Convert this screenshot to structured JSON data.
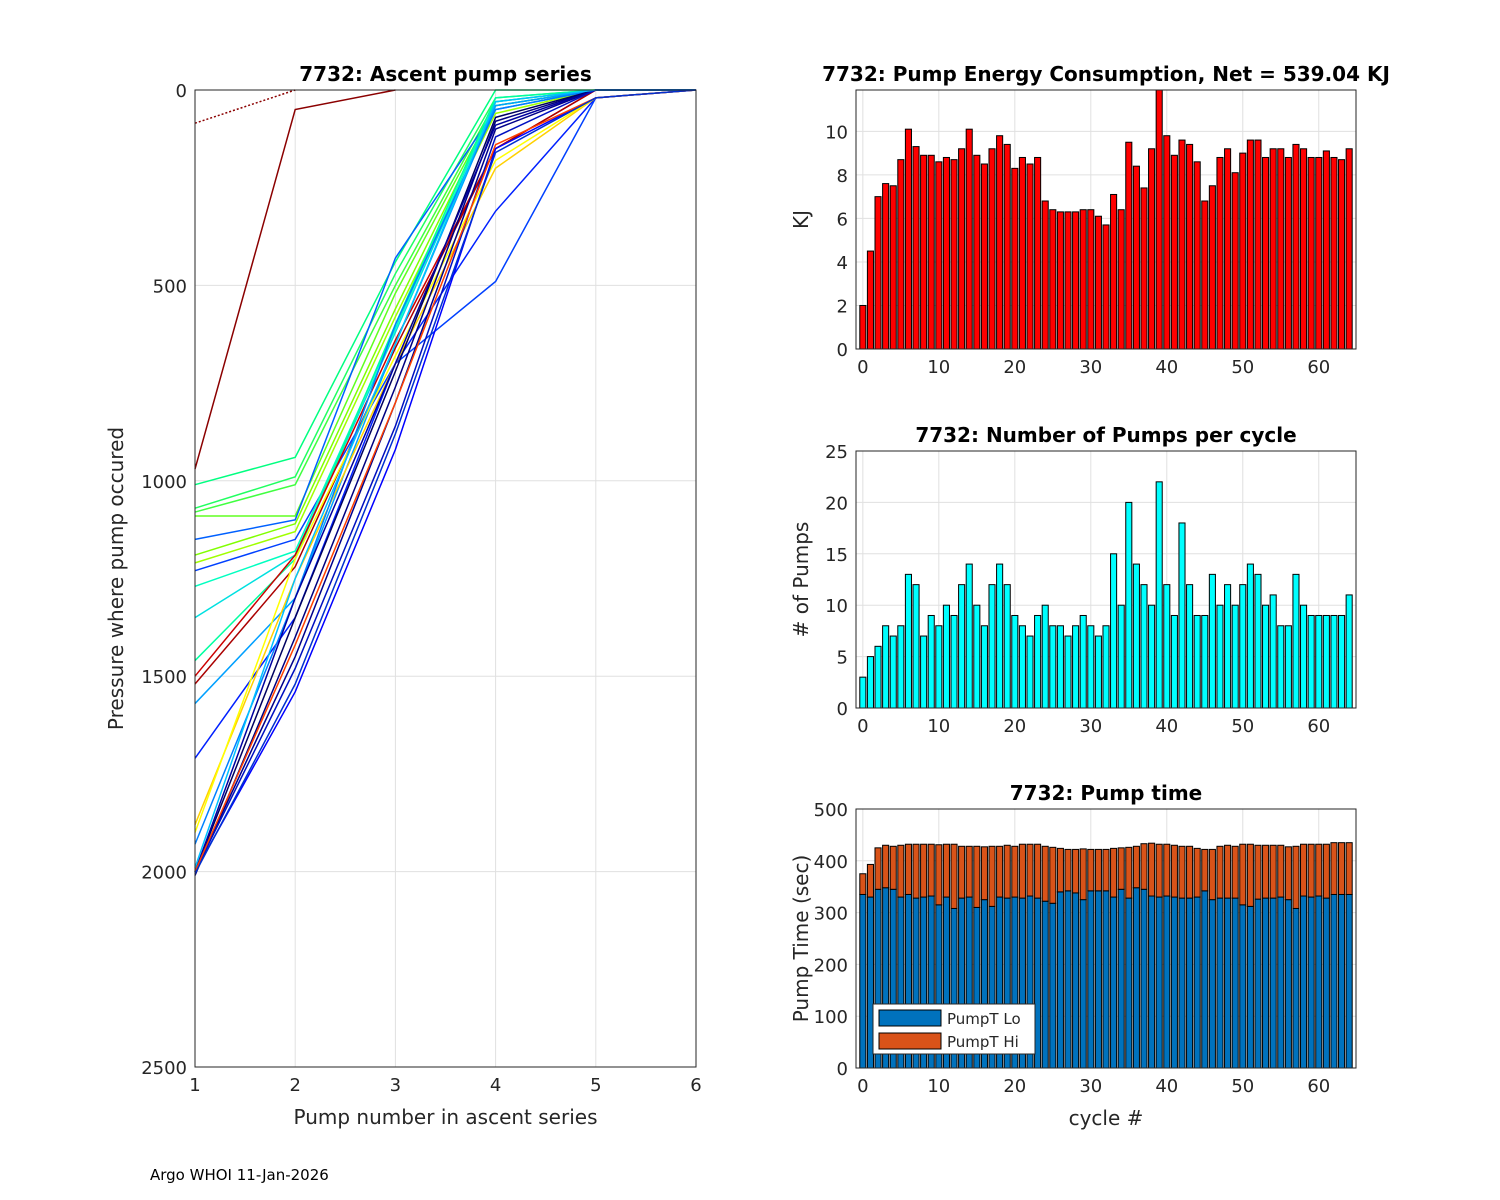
{
  "footer": "Argo WHOI 11-Jan-2026",
  "chart_data": [
    {
      "type": "line",
      "title": "7732: Ascent pump series",
      "xlabel": "Pump number in ascent series",
      "ylabel": "Pressure where pump occured",
      "xlim": [
        1,
        6
      ],
      "ylim": [
        0,
        2500
      ],
      "y_reversed": true,
      "xticks": [
        1,
        2,
        3,
        4,
        5,
        6
      ],
      "yticks": [
        0,
        500,
        1000,
        1500,
        2000,
        2500
      ],
      "grid": true,
      "series": [
        {
          "color": "#8b0000",
          "y": [
            970,
            50,
            0,
            null,
            null,
            null
          ]
        },
        {
          "color": "#8b0000",
          "y": [
            85,
            0,
            null,
            null,
            null,
            null
          ],
          "dotted": true
        },
        {
          "color": "#00ff80",
          "y": [
            1010,
            940,
            440,
            0,
            0,
            0
          ]
        },
        {
          "color": "#20ff60",
          "y": [
            1070,
            990,
            470,
            20,
            0,
            0
          ]
        },
        {
          "color": "#40ff40",
          "y": [
            1080,
            1010,
            500,
            30,
            0,
            0
          ]
        },
        {
          "color": "#60ff20",
          "y": [
            1090,
            1090,
            520,
            40,
            0,
            0
          ]
        },
        {
          "color": "#0060ff",
          "y": [
            1150,
            1100,
            430,
            50,
            0,
            0
          ]
        },
        {
          "color": "#80ff00",
          "y": [
            1190,
            1110,
            560,
            40,
            0,
            0
          ]
        },
        {
          "color": "#a0ff00",
          "y": [
            1210,
            1130,
            580,
            60,
            0,
            0
          ]
        },
        {
          "color": "#0040ff",
          "y": [
            1230,
            1150,
            700,
            490,
            20,
            0
          ]
        },
        {
          "color": "#00ffc0",
          "y": [
            1270,
            1180,
            610,
            30,
            0,
            0
          ]
        },
        {
          "color": "#00e0e0",
          "y": [
            1350,
            1190,
            620,
            40,
            0,
            0
          ]
        },
        {
          "color": "#00ffa0",
          "y": [
            1460,
            1200,
            600,
            20,
            0,
            0
          ]
        },
        {
          "color": "#cc0000",
          "y": [
            1500,
            1190,
            640,
            150,
            0,
            0
          ]
        },
        {
          "color": "#aa0000",
          "y": [
            1520,
            1220,
            660,
            150,
            0,
            0
          ]
        },
        {
          "color": "#00a0ff",
          "y": [
            1570,
            1300,
            650,
            40,
            0,
            0
          ]
        },
        {
          "color": "#0020ff",
          "y": [
            1710,
            1350,
            700,
            310,
            20,
            0
          ]
        },
        {
          "color": "#ffd000",
          "y": [
            1880,
            1250,
            700,
            200,
            20,
            0
          ]
        },
        {
          "color": "#ffff00",
          "y": [
            1900,
            1200,
            680,
            180,
            20,
            0
          ]
        },
        {
          "color": "#0080ff",
          "y": [
            1930,
            1300,
            600,
            50,
            0,
            0
          ]
        },
        {
          "color": "#0000ff",
          "y": [
            2000,
            1540,
            920,
            150,
            20,
            0
          ]
        },
        {
          "color": "#00008b",
          "y": [
            2000,
            1450,
            800,
            100,
            0,
            0
          ]
        },
        {
          "color": "#000080",
          "y": [
            2010,
            1400,
            760,
            80,
            0,
            0
          ]
        },
        {
          "color": "#000060",
          "y": [
            2000,
            1350,
            720,
            70,
            0,
            0
          ]
        },
        {
          "color": "#0000a0",
          "y": [
            2000,
            1300,
            700,
            90,
            0,
            0
          ]
        },
        {
          "color": "#0010c0",
          "y": [
            2000,
            1480,
            860,
            120,
            0,
            0
          ]
        },
        {
          "color": "#ff4000",
          "y": [
            2000,
            1420,
            800,
            140,
            20,
            0
          ]
        },
        {
          "color": "#00c0ff",
          "y": [
            1990,
            1250,
            650,
            30,
            0,
            0
          ]
        },
        {
          "color": "#0030d0",
          "y": [
            2005,
            1520,
            880,
            160,
            20,
            0
          ]
        }
      ]
    },
    {
      "type": "bar",
      "title": "7732: Pump Energy Consumption,  Net = 539.04 KJ",
      "xlabel": "",
      "ylabel": "KJ",
      "xlim": [
        -0.9,
        64.9
      ],
      "ylim": [
        0,
        11.9
      ],
      "xticks": [
        0,
        10,
        20,
        30,
        40,
        50,
        60
      ],
      "yticks": [
        0,
        2,
        4,
        6,
        8,
        10
      ],
      "color": "#ff0000",
      "values": [
        2.0,
        4.5,
        7.0,
        7.6,
        7.5,
        8.7,
        10.1,
        9.3,
        8.9,
        8.9,
        8.6,
        8.8,
        8.7,
        9.2,
        10.1,
        8.9,
        8.5,
        9.2,
        9.8,
        9.4,
        8.3,
        8.8,
        8.5,
        8.8,
        6.8,
        6.4,
        6.3,
        6.3,
        6.3,
        6.4,
        6.4,
        6.1,
        5.7,
        7.1,
        6.4,
        9.5,
        8.4,
        7.4,
        9.2,
        11.9,
        9.8,
        8.9,
        9.6,
        9.4,
        8.6,
        6.8,
        7.5,
        8.8,
        9.2,
        8.1,
        9.0,
        9.6,
        9.6,
        8.8,
        9.2,
        9.2,
        8.8,
        9.4,
        9.2,
        8.8,
        8.8,
        9.1,
        8.8,
        8.7,
        9.2
      ]
    },
    {
      "type": "bar",
      "title": "7732: Number of Pumps per cycle",
      "xlabel": "",
      "ylabel": "# of Pumps",
      "xlim": [
        -0.9,
        64.9
      ],
      "ylim": [
        0,
        25
      ],
      "xticks": [
        0,
        10,
        20,
        30,
        40,
        50,
        60
      ],
      "yticks": [
        0,
        5,
        10,
        15,
        20,
        25
      ],
      "color": "#00ffff",
      "values": [
        3,
        5,
        6,
        8,
        7,
        8,
        13,
        12,
        7,
        9,
        8,
        10,
        9,
        12,
        14,
        10,
        8,
        12,
        14,
        12,
        9,
        8,
        7,
        9,
        10,
        8,
        8,
        7,
        8,
        9,
        8,
        7,
        8,
        15,
        10,
        20,
        14,
        12,
        10,
        22,
        12,
        9,
        18,
        12,
        9,
        9,
        13,
        10,
        12,
        10,
        12,
        14,
        13,
        10,
        11,
        8,
        8,
        13,
        10,
        9,
        9,
        9,
        9,
        9,
        11
      ]
    },
    {
      "type": "bar",
      "stacked": true,
      "title": "7732: Pump time",
      "xlabel": "cycle #",
      "ylabel": "Pump Time (sec)",
      "xlim": [
        -0.9,
        64.9
      ],
      "ylim": [
        0,
        500
      ],
      "xticks": [
        0,
        10,
        20,
        30,
        40,
        50,
        60
      ],
      "yticks": [
        0,
        100,
        200,
        300,
        400,
        500
      ],
      "legend": "bottom-left",
      "series": [
        {
          "name": "PumpT Lo",
          "color": "#0072bd",
          "values": [
            335,
            330,
            345,
            348,
            345,
            330,
            335,
            328,
            330,
            332,
            315,
            330,
            308,
            328,
            330,
            310,
            325,
            312,
            330,
            328,
            330,
            328,
            332,
            328,
            322,
            318,
            340,
            342,
            338,
            325,
            342,
            342,
            342,
            330,
            345,
            328,
            348,
            345,
            332,
            330,
            332,
            330,
            328,
            328,
            330,
            342,
            325,
            328,
            328,
            328,
            315,
            312,
            326,
            328,
            328,
            330,
            325,
            308,
            332,
            330,
            332,
            328,
            335,
            335,
            335
          ]
        },
        {
          "name": "PumpT Hi",
          "color": "#d95319",
          "values": [
            40,
            63,
            80,
            82,
            83,
            100,
            97,
            104,
            102,
            100,
            116,
            102,
            124,
            100,
            98,
            118,
            102,
            116,
            98,
            102,
            98,
            104,
            100,
            104,
            106,
            108,
            84,
            80,
            84,
            98,
            80,
            80,
            80,
            94,
            80,
            98,
            80,
            88,
            102,
            102,
            100,
            100,
            100,
            100,
            94,
            80,
            97,
            100,
            102,
            100,
            117,
            120,
            104,
            102,
            102,
            100,
            102,
            120,
            100,
            102,
            100,
            104,
            100,
            100,
            100
          ]
        }
      ]
    }
  ]
}
